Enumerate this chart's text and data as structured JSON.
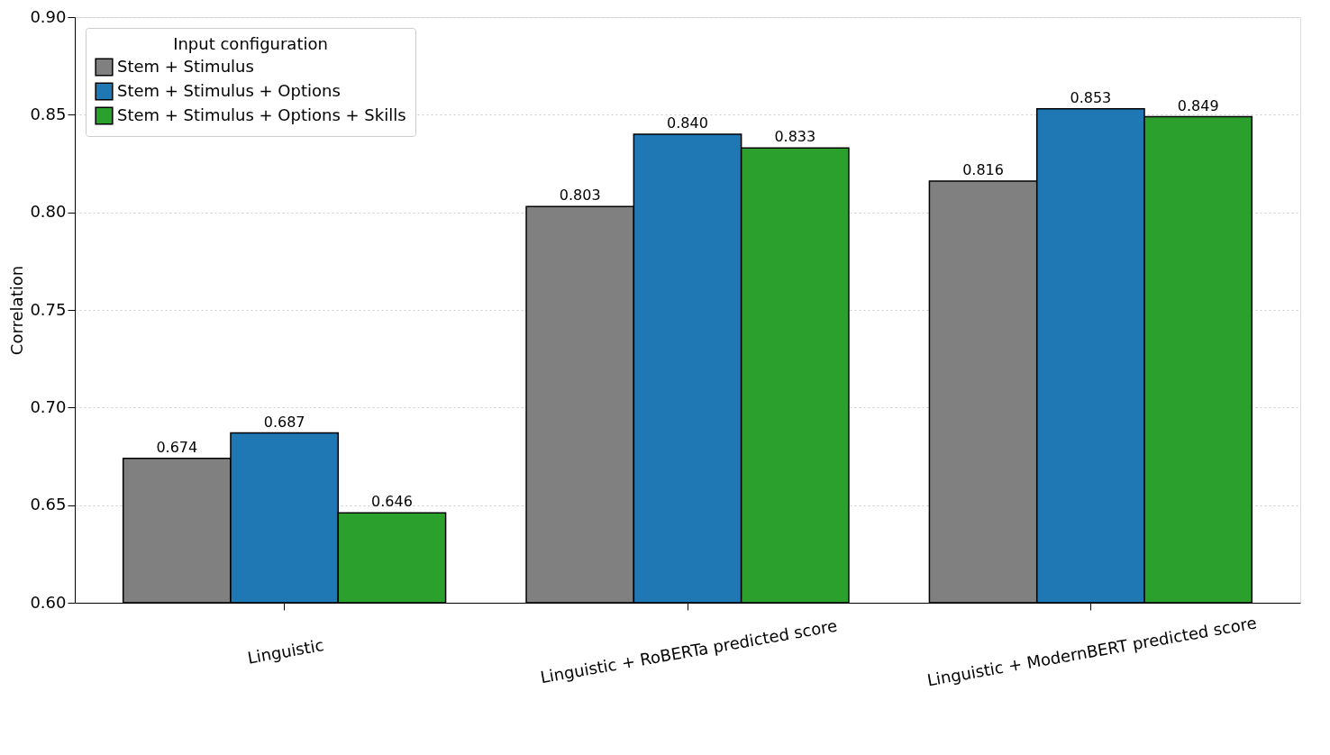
{
  "chart_data": {
    "type": "bar",
    "ylabel": "Correlation",
    "legend_title": "Input configuration",
    "categories": [
      "Linguistic",
      "Linguistic + RoBERTa predicted score",
      "Linguistic + ModernBERT predicted score"
    ],
    "series": [
      {
        "name": "Stem + Stimulus",
        "color": "#808080",
        "values": [
          0.674,
          0.803,
          0.816
        ],
        "value_labels": [
          "0.674",
          "0.803",
          "0.816"
        ]
      },
      {
        "name": "Stem + Stimulus + Options",
        "color": "#1f77b4",
        "values": [
          0.687,
          0.84,
          0.853
        ],
        "value_labels": [
          "0.687",
          "0.840",
          "0.853"
        ]
      },
      {
        "name": "Stem + Stimulus + Options + Skills",
        "color": "#2ca02c",
        "values": [
          0.646,
          0.833,
          0.849
        ],
        "value_labels": [
          "0.646",
          "0.833",
          "0.849"
        ]
      }
    ],
    "ylim": [
      0.6,
      0.9
    ],
    "yticks": [
      {
        "value": 0.6,
        "label": "0.60"
      },
      {
        "value": 0.65,
        "label": "0.65"
      },
      {
        "value": 0.7,
        "label": "0.70"
      },
      {
        "value": 0.75,
        "label": "0.75"
      },
      {
        "value": 0.8,
        "label": "0.80"
      },
      {
        "value": 0.85,
        "label": "0.85"
      },
      {
        "value": 0.9,
        "label": "0.90"
      }
    ],
    "grid": "y",
    "legend": "top left"
  }
}
